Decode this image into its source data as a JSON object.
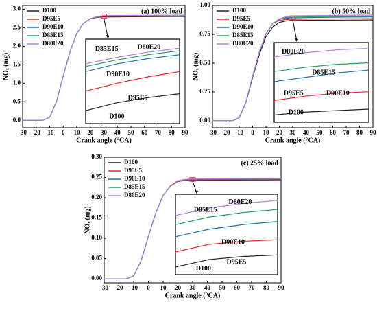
{
  "chart_data": [
    {
      "type": "line",
      "title": "(a) 100% load",
      "xlabel": "Crank angle (°CA)",
      "ylabel": "NOₓ (mg)",
      "x": [
        -30,
        -15,
        -10,
        -5,
        0,
        5,
        10,
        15,
        20,
        25,
        30,
        50,
        70,
        90
      ],
      "xlim": [
        -30,
        90
      ],
      "xticks": [
        -30,
        -20,
        -10,
        0,
        10,
        20,
        30,
        40,
        50,
        60,
        70,
        80,
        90
      ],
      "ylim": [
        -0.2,
        3.1
      ],
      "yticks": [
        {
          "value": 0,
          "label": "0.0"
        },
        0.5,
        {
          "value": 1,
          "label": "1.0"
        },
        1.5,
        {
          "value": 2,
          "label": "2.0"
        },
        2.5,
        {
          "value": 3,
          "label": "3.0"
        }
      ],
      "series": [
        {
          "name": "D100",
          "color": "#222222",
          "values": [
            0,
            0,
            0.08,
            0.5,
            1.2,
            1.85,
            2.35,
            2.62,
            2.74,
            2.78,
            2.79,
            2.796,
            2.8,
            2.803
          ]
        },
        {
          "name": "D95E5",
          "color": "#e8262b",
          "values": [
            0,
            0,
            0.08,
            0.5,
            1.2,
            1.85,
            2.35,
            2.62,
            2.74,
            2.785,
            2.805,
            2.811,
            2.816,
            2.82
          ]
        },
        {
          "name": "D90E10",
          "color": "#1f6fb8",
          "values": [
            0,
            0,
            0.08,
            0.5,
            1.2,
            1.85,
            2.35,
            2.62,
            2.745,
            2.79,
            2.82,
            2.826,
            2.83,
            2.833
          ]
        },
        {
          "name": "D85E15",
          "color": "#2ca05a",
          "values": [
            0,
            0,
            0.08,
            0.5,
            1.2,
            1.85,
            2.35,
            2.62,
            2.745,
            2.795,
            2.824,
            2.829,
            2.833,
            2.836
          ]
        },
        {
          "name": "D80E20",
          "color": "#b57edc",
          "values": [
            0,
            0,
            0.08,
            0.5,
            1.2,
            1.85,
            2.35,
            2.62,
            2.75,
            2.8,
            2.826,
            2.831,
            2.835,
            2.838
          ]
        }
      ],
      "inset": {
        "xlim": [
          30,
          90
        ],
        "ylim": [
          2.78,
          2.845
        ],
        "annotations": [
          "D85E15",
          "D80E20",
          "D90E10",
          "D95E5",
          "D100"
        ]
      }
    },
    {
      "type": "line",
      "title": "(b) 50% load",
      "xlabel": "Crank angle (°CA)",
      "ylabel": "NOₓ (mg)",
      "x": [
        -30,
        -15,
        -10,
        -5,
        0,
        5,
        10,
        15,
        20,
        25,
        30,
        50,
        70,
        90
      ],
      "xlim": [
        -30,
        90
      ],
      "xticks": [
        -30,
        -20,
        -10,
        0,
        10,
        20,
        30,
        40,
        50,
        60,
        70,
        80,
        90
      ],
      "ylim": [
        -0.06,
        1.0
      ],
      "yticks": [
        {
          "value": 0,
          "label": "0.00"
        },
        0.25,
        {
          "value": 0.5,
          "label": "0.50"
        },
        0.75,
        {
          "value": 1,
          "label": "1.00"
        }
      ],
      "series": [
        {
          "name": "D100",
          "color": "#222222",
          "values": [
            0,
            0,
            0.026,
            0.157,
            0.374,
            0.574,
            0.731,
            0.813,
            0.853,
            0.866,
            0.87,
            0.872,
            0.873,
            0.874
          ]
        },
        {
          "name": "D95E5",
          "color": "#e8262b",
          "values": [
            0,
            0,
            0.027,
            0.162,
            0.387,
            0.594,
            0.756,
            0.842,
            0.872,
            0.878,
            0.88,
            0.883,
            0.885,
            0.886
          ]
        },
        {
          "name": "D90E10",
          "color": "#1f6fb8",
          "values": [
            0,
            0,
            0.027,
            0.162,
            0.387,
            0.594,
            0.756,
            0.842,
            0.882,
            0.89,
            0.893,
            0.896,
            0.899,
            0.901
          ]
        },
        {
          "name": "D85E15",
          "color": "#2ca05a",
          "values": [
            0,
            0,
            0.027,
            0.162,
            0.387,
            0.594,
            0.756,
            0.842,
            0.882,
            0.896,
            0.9,
            0.903,
            0.905,
            0.906
          ]
        },
        {
          "name": "D80E20",
          "color": "#b57edc",
          "values": [
            0,
            0,
            0.027,
            0.162,
            0.387,
            0.594,
            0.756,
            0.842,
            0.885,
            0.902,
            0.91,
            0.913,
            0.915,
            0.916
          ]
        }
      ],
      "inset": {
        "xlim": [
          30,
          90
        ],
        "ylim": [
          0.865,
          0.92
        ],
        "annotations": [
          "D80E20",
          "D85E15",
          "D95E5",
          "D90E10",
          "D100"
        ]
      }
    },
    {
      "type": "line",
      "title": "(c) 25% load",
      "xlabel": "Crank angle (°CA)",
      "ylabel": "NOₓ (mg)",
      "x": [
        -30,
        -15,
        -10,
        -5,
        0,
        5,
        10,
        15,
        20,
        25,
        30,
        50,
        70,
        90
      ],
      "xlim": [
        -30,
        90
      ],
      "xticks": [
        -30,
        -20,
        -10,
        0,
        10,
        20,
        30,
        40,
        50,
        60,
        70,
        80,
        90
      ],
      "ylim": [
        -0.01,
        0.3
      ],
      "yticks": [
        {
          "value": 0,
          "label": "0.00"
        },
        0.05,
        {
          "value": 0.1,
          "label": "0.10"
        },
        0.15,
        {
          "value": 0.2,
          "label": "0.20"
        },
        0.25,
        {
          "value": 0.3,
          "label": "0.30"
        }
      ],
      "series": [
        {
          "name": "D100",
          "color": "#222222",
          "values": [
            0,
            0,
            0.007,
            0.044,
            0.105,
            0.162,
            0.206,
            0.229,
            0.24,
            0.2425,
            0.243,
            0.2435,
            0.2437,
            0.2438
          ]
        },
        {
          "name": "D95E5",
          "color": "#e8262b",
          "values": [
            0,
            0,
            0.007,
            0.044,
            0.105,
            0.162,
            0.206,
            0.229,
            0.24,
            0.2435,
            0.244,
            0.2445,
            0.2447,
            0.2448
          ]
        },
        {
          "name": "D90E10",
          "color": "#1f6fb8",
          "values": [
            0,
            0,
            0.007,
            0.044,
            0.105,
            0.162,
            0.206,
            0.23,
            0.241,
            0.2443,
            0.245,
            0.2455,
            0.2458,
            0.246
          ]
        },
        {
          "name": "D85E15",
          "color": "#2ca05a",
          "values": [
            0,
            0,
            0.007,
            0.044,
            0.105,
            0.162,
            0.206,
            0.23,
            0.241,
            0.245,
            0.2458,
            0.2463,
            0.2466,
            0.2468
          ]
        },
        {
          "name": "D80E20",
          "color": "#b57edc",
          "values": [
            0,
            0,
            0.007,
            0.044,
            0.105,
            0.162,
            0.206,
            0.23,
            0.242,
            0.2455,
            0.2464,
            0.2469,
            0.2472,
            0.2474
          ]
        }
      ],
      "inset": {
        "xlim": [
          30,
          90
        ],
        "ylim": [
          0.2425,
          0.2478
        ],
        "annotations": [
          "D85E15",
          "D80E20",
          "D90E10",
          "D95E5",
          "D100"
        ]
      }
    }
  ]
}
